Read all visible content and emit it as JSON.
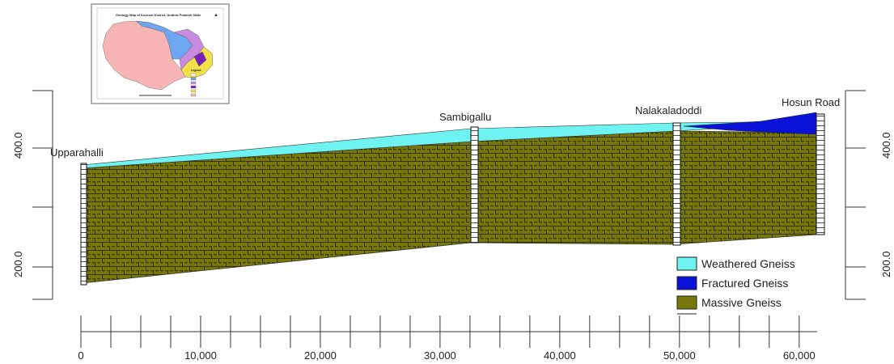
{
  "figure": {
    "inset_map": {
      "title": "Geology Map of Kurnool District, Andhra Pradesh State",
      "legend_heading": "Legend"
    },
    "wells": [
      {
        "name": "Upparahalli",
        "distance": 0
      },
      {
        "name": "Sambigallu",
        "distance": 32800
      },
      {
        "name": "Nalakaladoddi",
        "distance": 49800
      },
      {
        "name": "Hosun Road",
        "distance": 61500
      }
    ],
    "legend": [
      {
        "label": "Weathered Gneiss",
        "color": "#6ef2f2"
      },
      {
        "label": "Fractured Gneiss",
        "color": "#0a12d8"
      },
      {
        "label": "Massive Gneiss",
        "color": "#78780a"
      }
    ],
    "x_axis": {
      "ticks": [
        {
          "value": 0,
          "label": "0"
        },
        {
          "value": 10000,
          "label": "10,000"
        },
        {
          "value": 20000,
          "label": "20,000"
        },
        {
          "value": 30000,
          "label": "30,000"
        },
        {
          "value": 40000,
          "label": "40,000"
        },
        {
          "value": 50000,
          "label": "50,000"
        },
        {
          "value": 60000,
          "label": "60,000"
        }
      ],
      "minor_step": 2500
    },
    "y_axis": {
      "ticks": [
        {
          "value": 400,
          "label": "400.0"
        },
        {
          "value": 200,
          "label": "200.0"
        }
      ]
    }
  }
}
